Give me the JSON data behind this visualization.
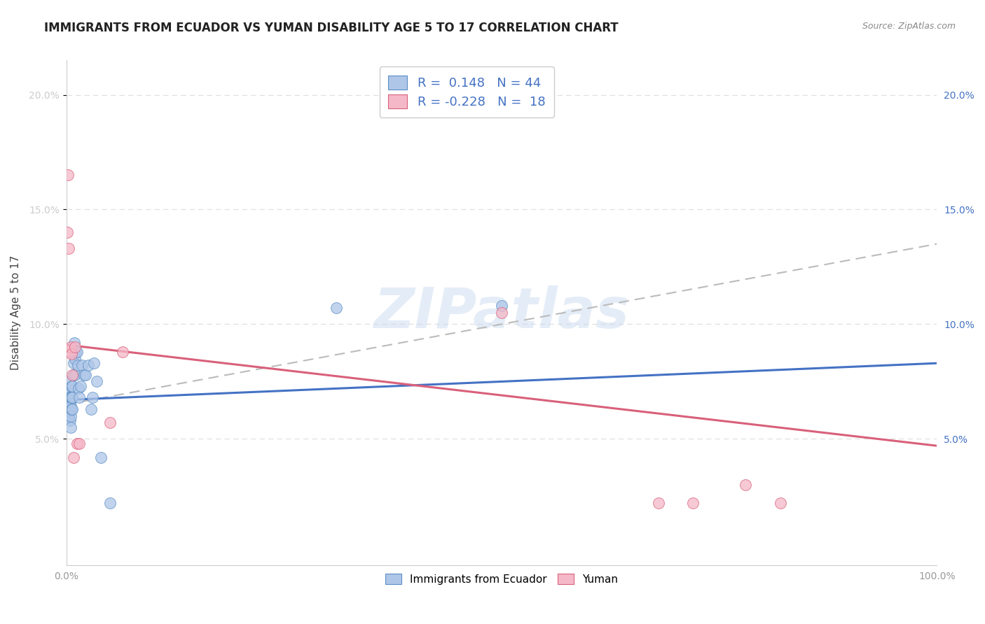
{
  "title": "IMMIGRANTS FROM ECUADOR VS YUMAN DISABILITY AGE 5 TO 17 CORRELATION CHART",
  "source": "Source: ZipAtlas.com",
  "ylabel": "Disability Age 5 to 17",
  "xlim": [
    0.0,
    1.0
  ],
  "ylim": [
    -0.005,
    0.215
  ],
  "yticks": [
    0.05,
    0.1,
    0.15,
    0.2
  ],
  "ytick_labels": [
    "5.0%",
    "10.0%",
    "15.0%",
    "20.0%"
  ],
  "xticks": [
    0.0,
    0.2,
    0.4,
    0.6,
    0.8,
    1.0
  ],
  "xtick_labels": [
    "0.0%",
    "",
    "",
    "",
    "",
    "100.0%"
  ],
  "background_color": "#ffffff",
  "grid_color": "#e0e0e0",
  "watermark": "ZIPatlas",
  "blue_R": 0.148,
  "blue_N": 44,
  "pink_R": -0.228,
  "pink_N": 18,
  "blue_color": "#aec6e8",
  "blue_edge_color": "#5b8ec4",
  "blue_line_color": "#4472c4",
  "pink_color": "#f5b8c8",
  "pink_edge_color": "#d9607a",
  "pink_line_color": "#d9607a",
  "blue_scatter_x": [
    0.001,
    0.001,
    0.002,
    0.002,
    0.003,
    0.003,
    0.003,
    0.004,
    0.004,
    0.004,
    0.005,
    0.005,
    0.005,
    0.005,
    0.006,
    0.006,
    0.006,
    0.007,
    0.007,
    0.007,
    0.008,
    0.008,
    0.009,
    0.009,
    0.01,
    0.01,
    0.011,
    0.012,
    0.013,
    0.014,
    0.015,
    0.016,
    0.018,
    0.02,
    0.022,
    0.025,
    0.028,
    0.03,
    0.032,
    0.035,
    0.04,
    0.05,
    0.31,
    0.5
  ],
  "blue_scatter_y": [
    0.07,
    0.065,
    0.075,
    0.07,
    0.068,
    0.064,
    0.06,
    0.066,
    0.062,
    0.058,
    0.068,
    0.064,
    0.06,
    0.055,
    0.073,
    0.068,
    0.063,
    0.073,
    0.068,
    0.063,
    0.083,
    0.078,
    0.092,
    0.087,
    0.085,
    0.078,
    0.088,
    0.088,
    0.082,
    0.072,
    0.068,
    0.073,
    0.082,
    0.078,
    0.078,
    0.082,
    0.063,
    0.068,
    0.083,
    0.075,
    0.042,
    0.022,
    0.107,
    0.108
  ],
  "pink_scatter_x": [
    0.001,
    0.002,
    0.003,
    0.004,
    0.005,
    0.006,
    0.007,
    0.008,
    0.01,
    0.012,
    0.015,
    0.05,
    0.065,
    0.5,
    0.68,
    0.72,
    0.78,
    0.82
  ],
  "pink_scatter_y": [
    0.14,
    0.165,
    0.133,
    0.088,
    0.09,
    0.087,
    0.078,
    0.042,
    0.09,
    0.048,
    0.048,
    0.057,
    0.088,
    0.105,
    0.022,
    0.022,
    0.03,
    0.022
  ],
  "blue_trend_x0": 0.0,
  "blue_trend_x1": 1.0,
  "blue_trend_y0": 0.067,
  "blue_trend_y1": 0.083,
  "pink_trend_x0": 0.0,
  "pink_trend_x1": 1.0,
  "pink_trend_y0": 0.091,
  "pink_trend_y1": 0.047,
  "gray_trend_x0": 0.0,
  "gray_trend_x1": 1.0,
  "gray_trend_y0": 0.065,
  "gray_trend_y1": 0.135,
  "legend_blue_label": "Immigrants from Ecuador",
  "legend_pink_label": "Yuman",
  "title_fontsize": 12,
  "axis_label_fontsize": 11,
  "tick_fontsize": 10,
  "right_tick_color": "#4472c4",
  "left_tick_color": "#cccccc"
}
